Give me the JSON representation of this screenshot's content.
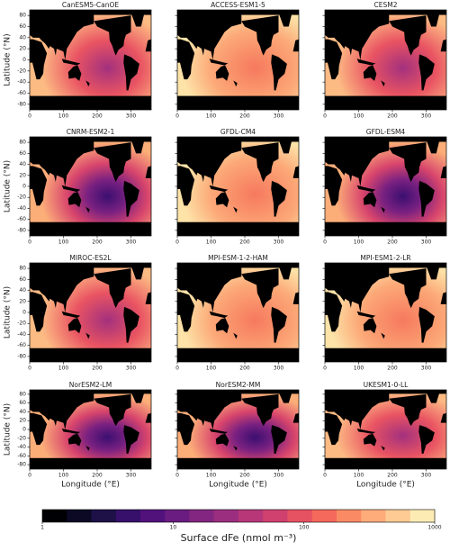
{
  "figure": {
    "panels": [
      {
        "type": "map",
        "title": "CanESM5-CanOE"
      },
      {
        "type": "map",
        "title": "ACCESS-ESM1-5"
      },
      {
        "type": "map",
        "title": "CESM2"
      },
      {
        "type": "map",
        "title": "CNRM-ESM2-1"
      },
      {
        "type": "map",
        "title": "GFDL-CM4"
      },
      {
        "type": "map",
        "title": "GFDL-ESM4"
      },
      {
        "type": "map",
        "title": "MIROC-ES2L"
      },
      {
        "type": "map",
        "title": "MPI-ESM-1-2-HAM"
      },
      {
        "type": "map",
        "title": "MPI-ESM1-2-LR"
      },
      {
        "type": "map",
        "title": "NorESM2-LM"
      },
      {
        "type": "map",
        "title": "NorESM2-MM"
      },
      {
        "type": "map",
        "title": "UKESM1-0-LL"
      }
    ],
    "xlabel": "Longitude (°E)",
    "ylabel": "Latitude (°N)",
    "xlim": [
      0,
      360
    ],
    "ylim": [
      -90,
      90
    ],
    "xticks": [
      0,
      100,
      200,
      300
    ],
    "yticks": [
      80,
      60,
      40,
      20,
      0,
      -20,
      -40,
      -60,
      -80
    ],
    "colorbar": {
      "label": "Surface dFe (nmol m⁻³)",
      "log": true,
      "lim": [
        1,
        1000
      ],
      "ticks": [
        1,
        10,
        100,
        1000
      ],
      "colors": [
        "#000004",
        "#0b0924",
        "#1d1147",
        "#36106b",
        "#51127c",
        "#6a1c81",
        "#832681",
        "#9c2e7f",
        "#b73779",
        "#d0416f",
        "#e75263",
        "#f4695c",
        "#fa8a63",
        "#fdac7a",
        "#fecb94",
        "#fcecb3"
      ]
    }
  }
}
